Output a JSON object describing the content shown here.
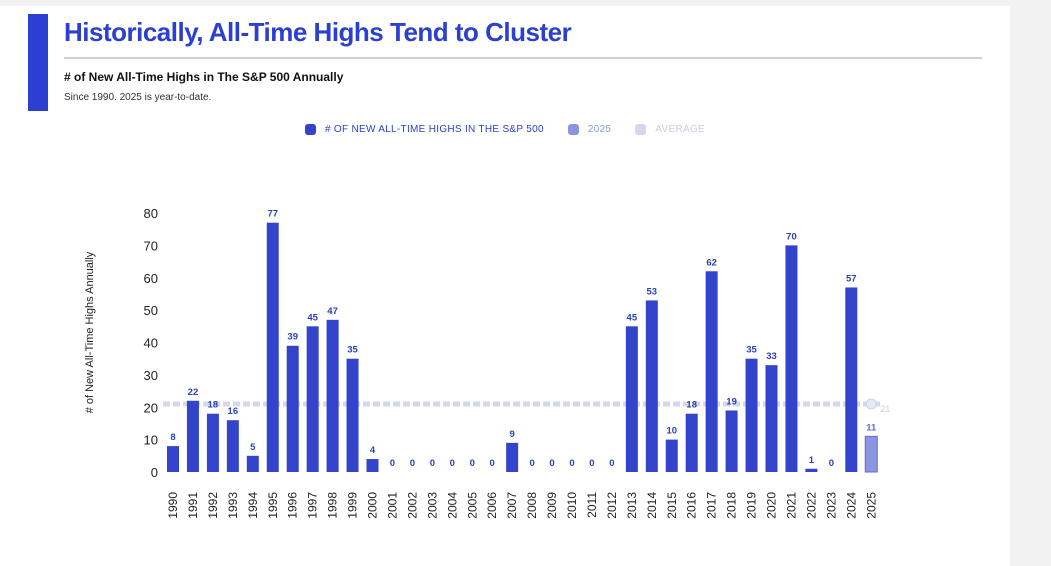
{
  "header": {
    "title": "Historically, All-Time Highs Tend to Cluster",
    "subtitle": "# of New All-Time Highs in The S&P 500 Annually",
    "note": "Since 1990. 2025 is year-to-date."
  },
  "colors": {
    "accent": "#2b3fd0",
    "bar": "#3343cc",
    "bar_2025": "#8c96e0",
    "average": "#d4d8ec"
  },
  "legend": {
    "items": [
      {
        "label": "# OF NEW ALL-TIME HIGHS IN THE S&P 500",
        "color": "#3343cc"
      },
      {
        "label": "2025",
        "color": "#8c96e0"
      },
      {
        "label": "AVERAGE",
        "color": "#d4d8ec"
      }
    ]
  },
  "chart_data": {
    "type": "bar",
    "title": "# of New All-Time Highs in The S&P 500 Annually",
    "xlabel": "",
    "ylabel": "# of New All-Time Highs Annually",
    "ylim": [
      0,
      80
    ],
    "yticks": [
      0,
      10,
      20,
      30,
      40,
      50,
      60,
      70,
      80
    ],
    "categories": [
      "1990",
      "1991",
      "1992",
      "1993",
      "1994",
      "1995",
      "1996",
      "1997",
      "1998",
      "1999",
      "2000",
      "2001",
      "2002",
      "2003",
      "2004",
      "2005",
      "2006",
      "2007",
      "2008",
      "2009",
      "2010",
      "2011",
      "2012",
      "2013",
      "2014",
      "2015",
      "2016",
      "2017",
      "2018",
      "2019",
      "2020",
      "2021",
      "2022",
      "2023",
      "2024",
      "2025"
    ],
    "series": [
      {
        "name": "# OF NEW ALL-TIME HIGHS IN THE S&P 500",
        "values": [
          8,
          22,
          18,
          16,
          5,
          77,
          39,
          45,
          47,
          35,
          4,
          0,
          0,
          0,
          0,
          0,
          0,
          9,
          0,
          0,
          0,
          0,
          0,
          45,
          53,
          10,
          18,
          62,
          19,
          35,
          33,
          70,
          1,
          0,
          57,
          11
        ]
      }
    ],
    "highlight": {
      "category": "2025",
      "label": "2025"
    },
    "average": {
      "label": "AVERAGE",
      "value": 21
    },
    "grid": false,
    "legend_position": "top-center"
  }
}
